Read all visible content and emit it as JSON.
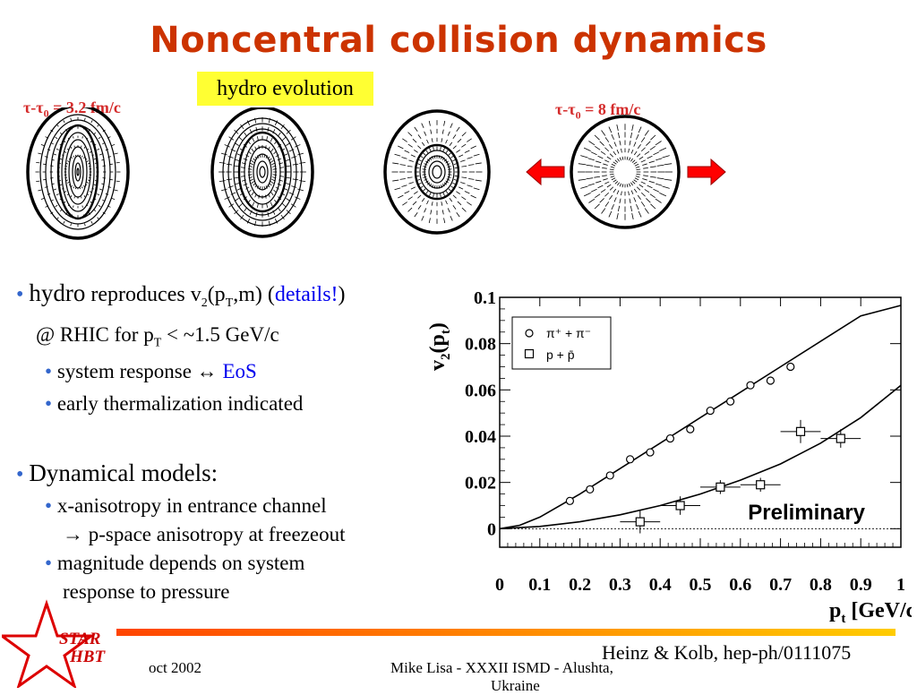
{
  "slide": {
    "title": "Noncentral collision dynamics",
    "hydro_label": "hydro evolution",
    "tau_left": "τ-τ",
    "tau_left_sub": "0",
    "tau_left_val": " = 3.2 fm/c",
    "tau_right": "τ-τ",
    "tau_right_sub": "0",
    "tau_right_val": " = 8 fm/c"
  },
  "bullets": {
    "b1_word": "hydro",
    "b1_rest": " reproduces v",
    "b1_sub1": "2",
    "b1_mid": "(p",
    "b1_sub2": "T",
    "b1_end": ",m) (",
    "b1_link": "details!",
    "b1_close": ")",
    "b1_line2_pre": "@ RHIC for p",
    "b1_line2_sub": "T",
    "b1_line2_post": " < ~1.5 GeV/c",
    "sub1_pre": "system response ↔ ",
    "sub1_link": "EoS",
    "sub2": "early thermalization indicated",
    "b2": "Dynamical models:",
    "sub3_l1": "x-anisotropy in entrance channel",
    "sub3_l2": "→ p-space anisotropy at freezeout",
    "sub4_l1": "magnitude depends on system",
    "sub4_l2": "response to pressure"
  },
  "footer": {
    "date": "oct 2002",
    "presenter": "Mike Lisa - XXXII ISMD - Alushta,",
    "presenter_l2": "Ukraine",
    "credit": "Heinz & Kolb, hep-ph/0111075",
    "star_l1": "STAR",
    "star_l2": "HBT"
  },
  "chart_data": {
    "type": "scatter",
    "xlabel": "p",
    "xlabel_sub": "t",
    "xlabel_unit": " [GeV/c]",
    "ylabel": "v",
    "ylabel_sub": "2",
    "ylabel_arg": "(p",
    "ylabel_arg_sub": "t",
    "ylabel_close": ")",
    "xlim": [
      0,
      1
    ],
    "ylim": [
      -0.008,
      0.1
    ],
    "xticks": [
      "0",
      "0.1",
      "0.2",
      "0.3",
      "0.4",
      "0.5",
      "0.6",
      "0.7",
      "0.8",
      "0.9",
      "1"
    ],
    "yticks": [
      "0",
      "0.02",
      "0.04",
      "0.06",
      "0.08",
      "0.1"
    ],
    "annotation": "Preliminary",
    "legend_position": "top-left",
    "series": [
      {
        "name": "π⁺ + π⁻",
        "marker": "circle",
        "x": [
          0.175,
          0.225,
          0.275,
          0.325,
          0.375,
          0.425,
          0.475,
          0.525,
          0.575,
          0.625,
          0.675,
          0.725
        ],
        "y": [
          0.012,
          0.017,
          0.023,
          0.03,
          0.033,
          0.039,
          0.043,
          0.051,
          0.055,
          0.062,
          0.064,
          0.07
        ]
      },
      {
        "name": "p + p̄",
        "marker": "square",
        "x": [
          0.35,
          0.45,
          0.55,
          0.65,
          0.75,
          0.85
        ],
        "y": [
          0.003,
          0.01,
          0.018,
          0.019,
          0.042,
          0.039
        ],
        "xerr": [
          0.05,
          0.05,
          0.05,
          0.05,
          0.05,
          0.05
        ],
        "yerr": [
          0.005,
          0.004,
          0.003,
          0.003,
          0.005,
          0.004
        ]
      }
    ],
    "curves": [
      {
        "x": [
          0,
          0.05,
          0.1,
          0.2,
          0.3,
          0.4,
          0.5,
          0.6,
          0.7,
          0.8,
          0.9,
          1.0
        ],
        "y": [
          0,
          0.0015,
          0.005,
          0.015,
          0.026,
          0.037,
          0.048,
          0.059,
          0.07,
          0.081,
          0.092,
          0.0965
        ]
      },
      {
        "x": [
          0,
          0.1,
          0.2,
          0.3,
          0.4,
          0.5,
          0.6,
          0.7,
          0.8,
          0.9,
          1.0
        ],
        "y": [
          0,
          0.001,
          0.003,
          0.006,
          0.01,
          0.015,
          0.021,
          0.028,
          0.037,
          0.048,
          0.062
        ]
      }
    ]
  }
}
